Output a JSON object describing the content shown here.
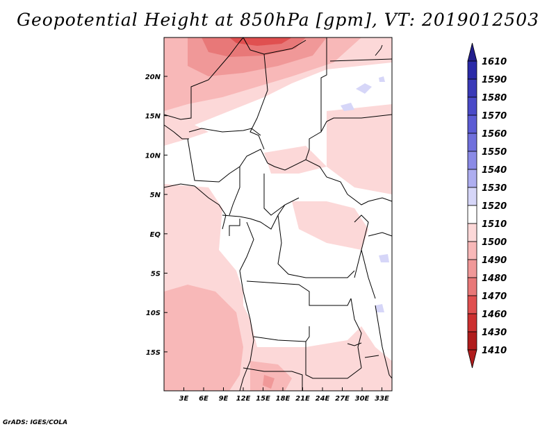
{
  "title": "Geopotential Height at 850hPa [gpm], VT: 2019012503",
  "credit": "GrADS: IGES/COLA",
  "lat_labels": [
    "20N",
    "15N",
    "10N",
    "5N",
    "EQ",
    "5S",
    "10S",
    "15S"
  ],
  "lon_labels": [
    "3E",
    "6E",
    "9E",
    "12E",
    "15E",
    "18E",
    "21E",
    "24E",
    "27E",
    "30E",
    "33E"
  ],
  "colorbar": {
    "levels": [
      {
        "label": "1610",
        "color": "#221e8c"
      },
      {
        "label": "1590",
        "color": "#2a2aa8"
      },
      {
        "label": "1580",
        "color": "#3a3ab8"
      },
      {
        "label": "1570",
        "color": "#4a4ac8"
      },
      {
        "label": "1560",
        "color": "#5c5cd4"
      },
      {
        "label": "1550",
        "color": "#7070dc"
      },
      {
        "label": "1540",
        "color": "#8a8ae6"
      },
      {
        "label": "1530",
        "color": "#aeaef0"
      },
      {
        "label": "1520",
        "color": "#d6d6f8"
      },
      {
        "label": "1510",
        "color": "#ffffff"
      },
      {
        "label": "1500",
        "color": "#fcd8d8"
      },
      {
        "label": "1490",
        "color": "#f8b8b8"
      },
      {
        "label": "1480",
        "color": "#f09898"
      },
      {
        "label": "1470",
        "color": "#e87878"
      },
      {
        "label": "1460",
        "color": "#e05050"
      },
      {
        "label": "1430",
        "color": "#cc3030"
      },
      {
        "label": "1410",
        "color": "#b01c1c"
      }
    ]
  }
}
